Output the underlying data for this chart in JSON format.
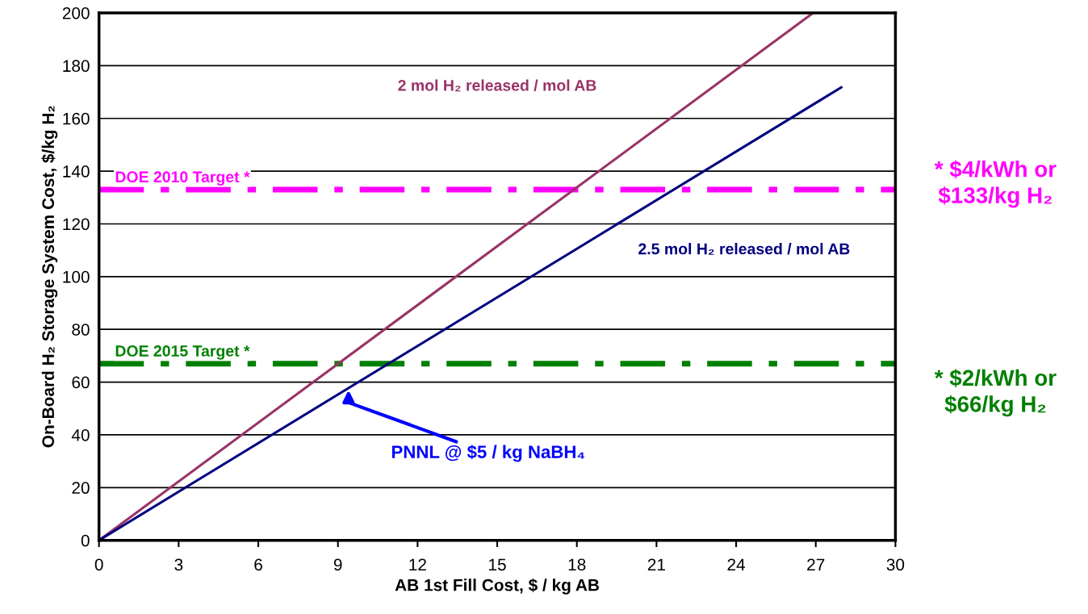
{
  "chart_data": {
    "type": "line",
    "xlabel": "AB 1st Fill Cost, $ / kg AB",
    "ylabel": "On-Board H₂ Storage System Cost, $/kg H₂",
    "xlim": [
      0,
      30
    ],
    "xticks": [
      0,
      3,
      6,
      9,
      12,
      15,
      18,
      21,
      24,
      27,
      30
    ],
    "ylim": [
      0,
      200
    ],
    "yticks": [
      0,
      20,
      40,
      60,
      80,
      100,
      120,
      140,
      160,
      180,
      200
    ],
    "grid": "y",
    "marker": "none",
    "line_style": "solid",
    "series": [
      {
        "name": "2 mol H₂ released / mol AB",
        "color": "#993366",
        "x": [
          0,
          26.9
        ],
        "values": [
          0,
          200
        ]
      },
      {
        "name": "2.5 mol H₂ released / mol AB",
        "color": "#000080",
        "x": [
          0,
          28
        ],
        "values": [
          0,
          172
        ]
      }
    ],
    "ref_lines": [
      {
        "axis": "y",
        "value": 133,
        "label": "DOE 2010 Target *",
        "color": "#ff00ff",
        "line_style": "dashed"
      },
      {
        "axis": "y",
        "value": 67,
        "label": "DOE 2015 Target *",
        "color": "#008000",
        "line_style": "dashed"
      }
    ],
    "annotations": [
      {
        "text": "PNNL @ $5 / kg NaBH₄",
        "x": 9.4,
        "y": 57
      },
      "* $4/kWh or\n$133/kg H₂",
      "* $2/kWh or\n$66/kg H₂"
    ]
  }
}
